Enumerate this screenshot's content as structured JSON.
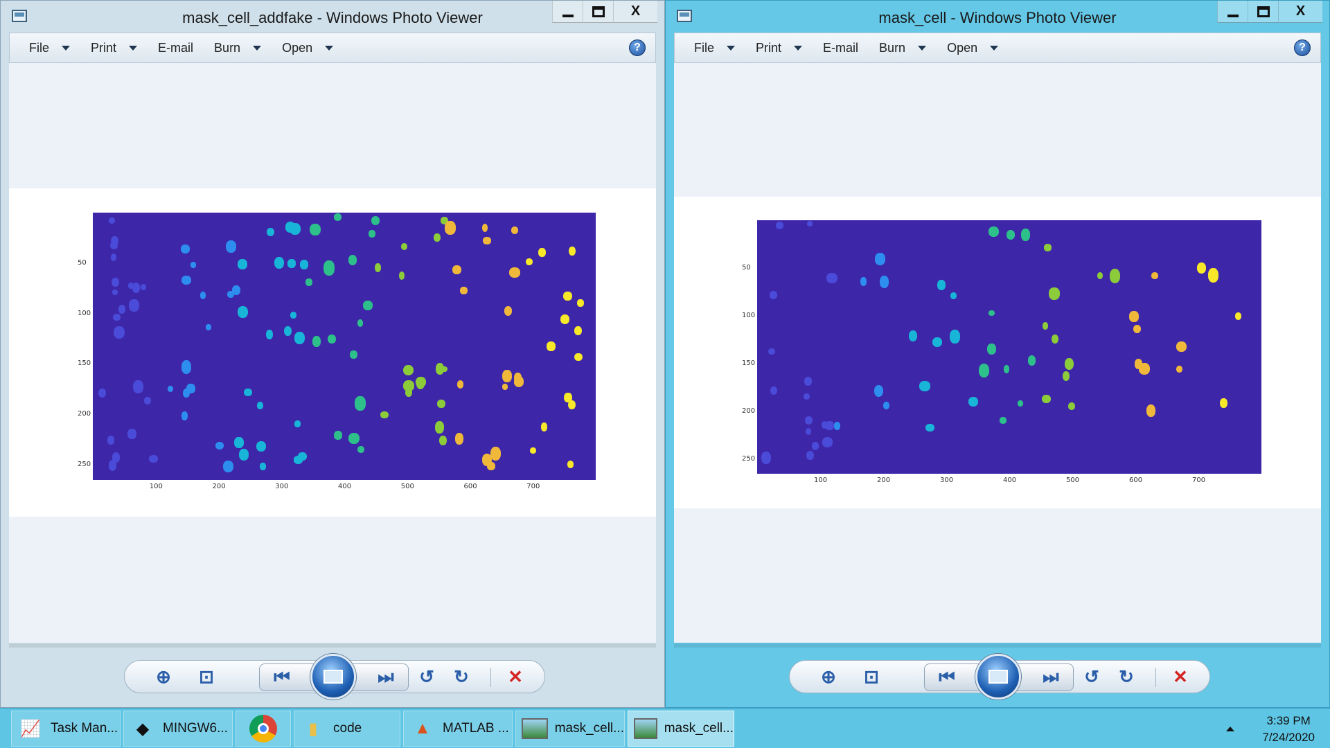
{
  "left_window": {
    "title": "mask_cell_addfake - Windows Photo Viewer",
    "menu": [
      "File",
      "Print",
      "E-mail",
      "Burn",
      "Open"
    ],
    "chart": {
      "xticks": [
        "100",
        "200",
        "300",
        "400",
        "500",
        "600",
        "700"
      ],
      "yticks": [
        "50",
        "100",
        "150",
        "200",
        "250"
      ]
    }
  },
  "right_window": {
    "title": "mask_cell - Windows Photo Viewer",
    "menu": [
      "File",
      "Print",
      "E-mail",
      "Burn",
      "Open"
    ],
    "chart": {
      "xticks": [
        "100",
        "200",
        "300",
        "400",
        "500",
        "600",
        "700"
      ],
      "yticks": [
        "50",
        "100",
        "150",
        "200",
        "250"
      ]
    }
  },
  "window_controls": {
    "minimize_icon": "minimize-icon",
    "maximize_icon": "maximize-icon",
    "close_label": "X"
  },
  "toolbar_icons": [
    "zoom-icon",
    "fit-window-icon",
    "previous-icon",
    "slideshow-icon",
    "next-icon",
    "rotate-ccw-icon",
    "rotate-cw-icon",
    "delete-icon"
  ],
  "taskbar": {
    "items": [
      {
        "label": "Task Man...",
        "icon": "task-manager-icon"
      },
      {
        "label": "MINGW6...",
        "icon": "mingw-icon"
      },
      {
        "label": "",
        "icon": "chrome-icon"
      },
      {
        "label": "code",
        "icon": "folder-icon"
      },
      {
        "label": "MATLAB ...",
        "icon": "matlab-icon"
      },
      {
        "label": "mask_cell...",
        "icon": "photo-viewer-icon"
      },
      {
        "label": "mask_cell...",
        "icon": "photo-viewer-icon"
      }
    ],
    "time": "3:39 PM",
    "date": "7/24/2020"
  },
  "colors": {
    "plot_background": "#3e26a8",
    "cell_palette": [
      "#4a4bd8",
      "#2d8ef0",
      "#18b5d8",
      "#2dc08a",
      "#8ccb3a",
      "#f0b83a",
      "#f7e82a"
    ]
  }
}
